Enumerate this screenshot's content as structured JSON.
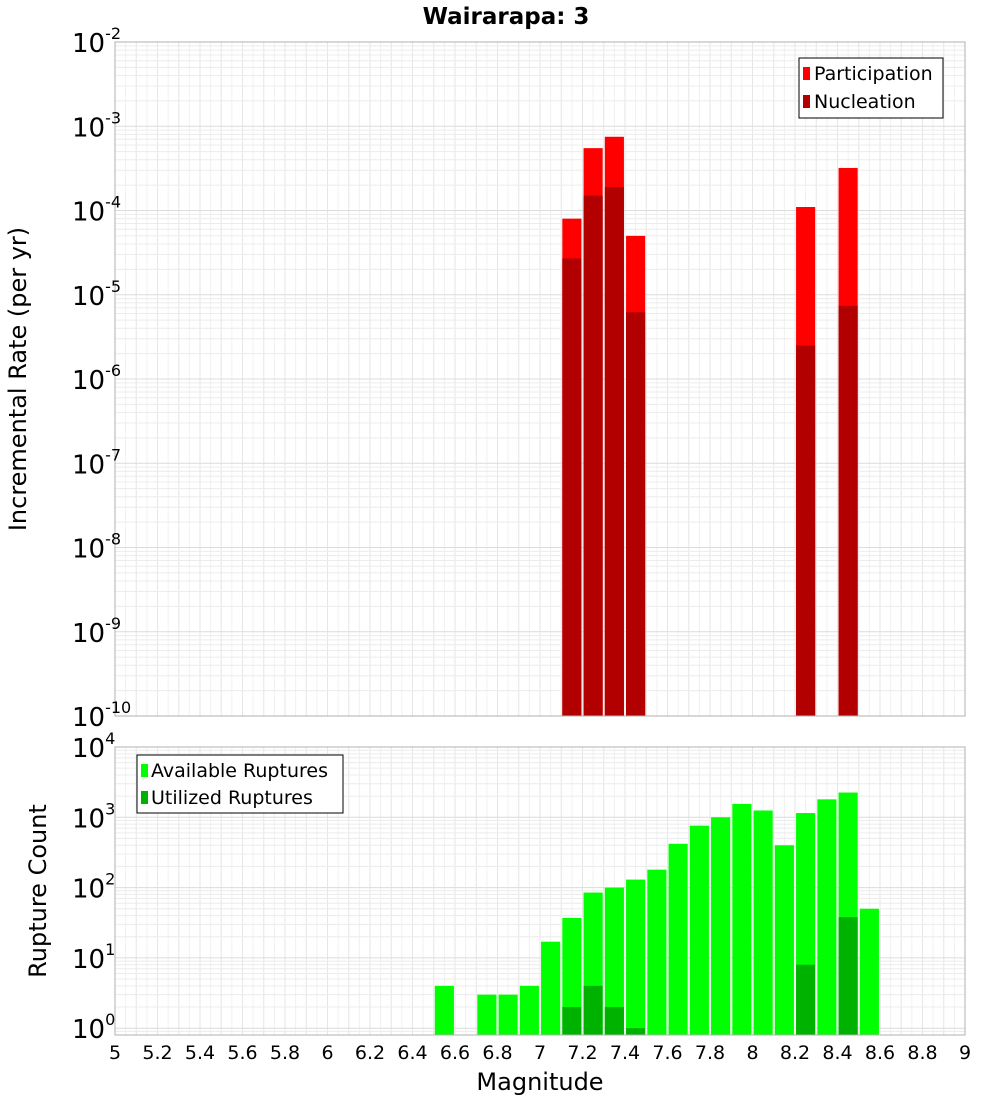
{
  "chart_data": [
    {
      "type": "bar",
      "title": "Wairarapa: 3",
      "xlabel": "Magnitude",
      "ylabel": "Incremental Rate (per yr)",
      "yscale": "log",
      "ylim": [
        1e-10,
        0.01
      ],
      "xlim": [
        5,
        9
      ],
      "grid": true,
      "legend_position": "top-right",
      "yticks": [
        {
          "base": "10",
          "exp": "-2",
          "value": 0.01
        },
        {
          "base": "10",
          "exp": "-3",
          "value": 0.001
        },
        {
          "base": "10",
          "exp": "-4",
          "value": 0.0001
        },
        {
          "base": "10",
          "exp": "-5",
          "value": 1e-05
        },
        {
          "base": "10",
          "exp": "-6",
          "value": 1e-06
        },
        {
          "base": "10",
          "exp": "-7",
          "value": 1e-07
        },
        {
          "base": "10",
          "exp": "-8",
          "value": 1e-08
        },
        {
          "base": "10",
          "exp": "-9",
          "value": 1e-09
        },
        {
          "base": "10",
          "exp": "-10",
          "value": 1e-10
        }
      ],
      "series": [
        {
          "name": "Participation",
          "color": "#ff0000",
          "points": [
            {
              "x": 7.15,
              "y": 8e-05
            },
            {
              "x": 7.25,
              "y": 0.00055
            },
            {
              "x": 7.35,
              "y": 0.00075
            },
            {
              "x": 7.45,
              "y": 5e-05
            },
            {
              "x": 8.25,
              "y": 0.00011
            },
            {
              "x": 8.45,
              "y": 0.00032
            }
          ]
        },
        {
          "name": "Nucleation",
          "color": "#b20000",
          "points": [
            {
              "x": 7.15,
              "y": 2.7e-05
            },
            {
              "x": 7.25,
              "y": 0.00015
            },
            {
              "x": 7.35,
              "y": 0.00019
            },
            {
              "x": 7.45,
              "y": 6.2e-06
            },
            {
              "x": 8.25,
              "y": 2.5e-06
            },
            {
              "x": 8.45,
              "y": 7.4e-06
            }
          ]
        }
      ]
    },
    {
      "type": "bar",
      "title": "",
      "xlabel": "Magnitude",
      "ylabel": "Rupture Count",
      "yscale": "log",
      "ylim": [
        0.8,
        10000
      ],
      "xlim": [
        5,
        9
      ],
      "grid": true,
      "legend_position": "top-left",
      "xticks": [
        "5",
        "5.2",
        "5.4",
        "5.6",
        "5.8",
        "6",
        "6.2",
        "6.4",
        "6.6",
        "6.8",
        "7",
        "7.2",
        "7.4",
        "7.6",
        "7.8",
        "8",
        "8.2",
        "8.4",
        "8.6",
        "8.8",
        "9"
      ],
      "yticks": [
        {
          "base": "10",
          "exp": "4",
          "value": 10000
        },
        {
          "base": "10",
          "exp": "3",
          "value": 1000
        },
        {
          "base": "10",
          "exp": "2",
          "value": 100
        },
        {
          "base": "10",
          "exp": "1",
          "value": 10
        },
        {
          "base": "10",
          "exp": "0",
          "value": 1
        }
      ],
      "series": [
        {
          "name": "Available Ruptures",
          "color": "#00ff00",
          "points": [
            {
              "x": 6.55,
              "y": 4
            },
            {
              "x": 6.75,
              "y": 3
            },
            {
              "x": 6.85,
              "y": 3
            },
            {
              "x": 6.95,
              "y": 4
            },
            {
              "x": 7.05,
              "y": 17
            },
            {
              "x": 7.15,
              "y": 37
            },
            {
              "x": 7.25,
              "y": 85
            },
            {
              "x": 7.35,
              "y": 100
            },
            {
              "x": 7.45,
              "y": 130
            },
            {
              "x": 7.55,
              "y": 180
            },
            {
              "x": 7.65,
              "y": 420
            },
            {
              "x": 7.75,
              "y": 760
            },
            {
              "x": 7.85,
              "y": 1000
            },
            {
              "x": 7.95,
              "y": 1550
            },
            {
              "x": 8.05,
              "y": 1250
            },
            {
              "x": 8.15,
              "y": 400
            },
            {
              "x": 8.25,
              "y": 1150
            },
            {
              "x": 8.35,
              "y": 1800
            },
            {
              "x": 8.45,
              "y": 2250
            },
            {
              "x": 8.55,
              "y": 50
            }
          ]
        },
        {
          "name": "Utilized Ruptures",
          "color": "#00b200",
          "points": [
            {
              "x": 7.15,
              "y": 2
            },
            {
              "x": 7.25,
              "y": 4
            },
            {
              "x": 7.35,
              "y": 2
            },
            {
              "x": 7.45,
              "y": 1
            },
            {
              "x": 8.25,
              "y": 8
            },
            {
              "x": 8.45,
              "y": 38
            }
          ]
        }
      ]
    }
  ]
}
